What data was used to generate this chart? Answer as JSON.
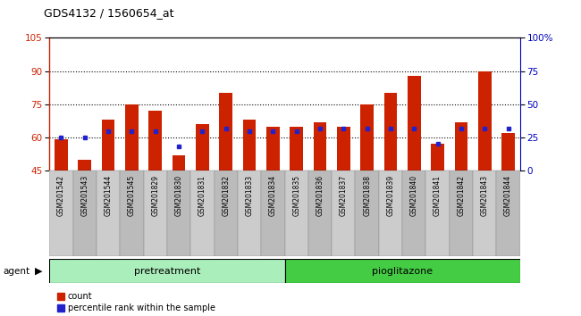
{
  "title": "GDS4132 / 1560654_at",
  "samples": [
    "GSM201542",
    "GSM201543",
    "GSM201544",
    "GSM201545",
    "GSM201829",
    "GSM201830",
    "GSM201831",
    "GSM201832",
    "GSM201833",
    "GSM201834",
    "GSM201835",
    "GSM201836",
    "GSM201837",
    "GSM201838",
    "GSM201839",
    "GSM201840",
    "GSM201841",
    "GSM201842",
    "GSM201843",
    "GSM201844"
  ],
  "count_values": [
    59,
    50,
    68,
    75,
    72,
    52,
    66,
    80,
    68,
    65,
    65,
    67,
    65,
    75,
    80,
    88,
    57,
    67,
    90,
    62
  ],
  "percentile_values": [
    25,
    25,
    30,
    30,
    30,
    18,
    30,
    32,
    30,
    30,
    30,
    32,
    32,
    32,
    32,
    32,
    20,
    32,
    32,
    32
  ],
  "pretreatment_count": 10,
  "pioglitazone_count": 10,
  "ylim_left": [
    45,
    105
  ],
  "ylim_right": [
    0,
    100
  ],
  "yticks_left": [
    45,
    60,
    75,
    90,
    105
  ],
  "yticks_right": [
    0,
    25,
    50,
    75,
    100
  ],
  "ytick_labels_right": [
    "0",
    "25",
    "50",
    "75",
    "100%"
  ],
  "hlines": [
    60,
    75,
    90
  ],
  "bar_color": "#cc2200",
  "percentile_color": "#2222cc",
  "pretreat_color": "#aaeebb",
  "pioglit_color": "#44cc44",
  "bar_width": 0.55,
  "legend_count_label": "count",
  "legend_pct_label": "percentile rank within the sample",
  "cell_color_odd": "#cccccc",
  "cell_color_even": "#bbbbbb"
}
